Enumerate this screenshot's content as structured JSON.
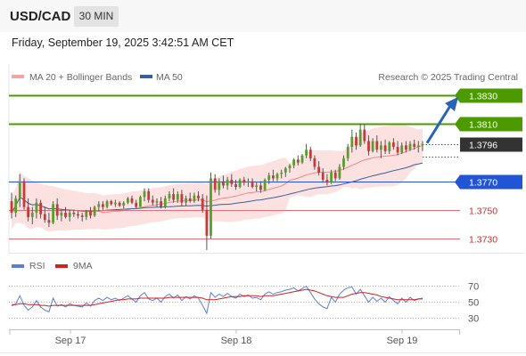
{
  "header": {
    "symbol": "USD/CAD",
    "timeframe": "30 MIN",
    "datetime": "Friday, September 19, 2025 3:42:51 AM CET"
  },
  "legend": {
    "ma20": "MA 20 + Bollinger Bands",
    "ma50": "MA 50",
    "copyright": "Research © 2025 Trading Central"
  },
  "rsi_legend": {
    "rsi": "RSI",
    "ma9": "9MA"
  },
  "colors": {
    "resistance": "#4c9a00",
    "support": "#2155d6",
    "support_red": "#e0707a",
    "current": "#333333",
    "up_candle": "#5a9e2a",
    "down_candle": "#c83a3a",
    "bollinger_fill": "#fbdcdc",
    "ma20": "#f08a8a",
    "ma50": "#3a5fa0",
    "rsi_line": "#5b7fd6",
    "rsi_ma": "#d42020",
    "arrow": "#2a62b8"
  },
  "chart_data": {
    "type": "candlestick",
    "symbol": "USD/CAD",
    "x_labels": [
      "Sep 17",
      "Sep 18",
      "Sep 19"
    ],
    "y_range": [
      1.372,
      1.384
    ],
    "levels": [
      {
        "value": 1.383,
        "label": "1.3830",
        "kind": "resistance"
      },
      {
        "value": 1.381,
        "label": "1.3810",
        "kind": "resistance"
      },
      {
        "value": 1.3796,
        "label": "1.3796",
        "kind": "current"
      },
      {
        "value": 1.377,
        "label": "1.3770",
        "kind": "pivot"
      },
      {
        "value": 1.375,
        "label": "1.3750",
        "kind": "support"
      },
      {
        "value": 1.373,
        "label": "1.3730",
        "kind": "support"
      }
    ],
    "forecast_arrow": {
      "from": 1.3796,
      "to": 1.383
    },
    "candles": [
      [
        1.3756,
        1.3762,
        1.3744,
        1.3748
      ],
      [
        1.3748,
        1.376,
        1.3745,
        1.3758
      ],
      [
        1.3758,
        1.3775,
        1.3752,
        1.377
      ],
      [
        1.377,
        1.3772,
        1.375,
        1.3752
      ],
      [
        1.3752,
        1.3758,
        1.3742,
        1.3745
      ],
      [
        1.3745,
        1.3752,
        1.374,
        1.3748
      ],
      [
        1.3748,
        1.3758,
        1.3744,
        1.3755
      ],
      [
        1.3755,
        1.3757,
        1.3744,
        1.3747
      ],
      [
        1.3747,
        1.3752,
        1.3741,
        1.3743
      ],
      [
        1.3743,
        1.3748,
        1.3738,
        1.3741
      ],
      [
        1.3741,
        1.3756,
        1.374,
        1.3754
      ],
      [
        1.3754,
        1.3758,
        1.3743,
        1.3746
      ],
      [
        1.3746,
        1.375,
        1.3742,
        1.3748
      ],
      [
        1.3748,
        1.3752,
        1.3744,
        1.3745
      ],
      [
        1.3745,
        1.375,
        1.3742,
        1.3748
      ],
      [
        1.3748,
        1.375,
        1.3745,
        1.3747
      ],
      [
        1.3747,
        1.3749,
        1.3744,
        1.3746
      ],
      [
        1.3746,
        1.3748,
        1.3742,
        1.3745
      ],
      [
        1.3745,
        1.375,
        1.3743,
        1.3749
      ],
      [
        1.3749,
        1.3752,
        1.3744,
        1.3746
      ],
      [
        1.3746,
        1.3753,
        1.3745,
        1.3752
      ],
      [
        1.3752,
        1.3756,
        1.3749,
        1.3754
      ],
      [
        1.3754,
        1.3756,
        1.375,
        1.3752
      ],
      [
        1.3752,
        1.3757,
        1.3751,
        1.3756
      ],
      [
        1.3756,
        1.3757,
        1.3753,
        1.3754
      ],
      [
        1.3754,
        1.3757,
        1.3752,
        1.3755
      ],
      [
        1.3755,
        1.3756,
        1.3752,
        1.3753
      ],
      [
        1.3753,
        1.3756,
        1.3751,
        1.3755
      ],
      [
        1.3755,
        1.3759,
        1.3754,
        1.3758
      ],
      [
        1.3758,
        1.376,
        1.3754,
        1.3755
      ],
      [
        1.3755,
        1.3757,
        1.3751,
        1.3752
      ],
      [
        1.3752,
        1.376,
        1.3752,
        1.3759
      ],
      [
        1.3759,
        1.3765,
        1.3756,
        1.3763
      ],
      [
        1.3763,
        1.3765,
        1.3755,
        1.3757
      ],
      [
        1.3757,
        1.376,
        1.3753,
        1.3755
      ],
      [
        1.3755,
        1.3758,
        1.3752,
        1.3756
      ],
      [
        1.3756,
        1.3759,
        1.3751,
        1.3752
      ],
      [
        1.3752,
        1.376,
        1.3751,
        1.3758
      ],
      [
        1.3758,
        1.3763,
        1.3756,
        1.3761
      ],
      [
        1.3761,
        1.3765,
        1.3755,
        1.3757
      ],
      [
        1.3757,
        1.3763,
        1.3755,
        1.3761
      ],
      [
        1.3761,
        1.3764,
        1.3753,
        1.3755
      ],
      [
        1.3755,
        1.376,
        1.3753,
        1.3758
      ],
      [
        1.3758,
        1.3762,
        1.3755,
        1.3756
      ],
      [
        1.3756,
        1.3762,
        1.3755,
        1.376
      ],
      [
        1.376,
        1.3763,
        1.3756,
        1.3758
      ],
      [
        1.3758,
        1.3761,
        1.3748,
        1.375
      ],
      [
        1.375,
        1.376,
        1.3722,
        1.3732
      ],
      [
        1.3732,
        1.3776,
        1.373,
        1.3772
      ],
      [
        1.3772,
        1.3775,
        1.3762,
        1.3764
      ],
      [
        1.3764,
        1.3772,
        1.376,
        1.377
      ],
      [
        1.377,
        1.3774,
        1.3765,
        1.3767
      ],
      [
        1.3767,
        1.3773,
        1.3764,
        1.3771
      ],
      [
        1.3771,
        1.3775,
        1.3766,
        1.3768
      ],
      [
        1.3768,
        1.3771,
        1.3764,
        1.3766
      ],
      [
        1.3766,
        1.3772,
        1.3765,
        1.3771
      ],
      [
        1.3771,
        1.3773,
        1.3767,
        1.3769
      ],
      [
        1.3769,
        1.3772,
        1.3766,
        1.377
      ],
      [
        1.377,
        1.3772,
        1.3765,
        1.3766
      ],
      [
        1.3766,
        1.3769,
        1.3763,
        1.3767
      ],
      [
        1.3767,
        1.377,
        1.3762,
        1.3764
      ],
      [
        1.3764,
        1.3772,
        1.3763,
        1.3771
      ],
      [
        1.3771,
        1.3776,
        1.3768,
        1.3774
      ],
      [
        1.3774,
        1.3778,
        1.377,
        1.3772
      ],
      [
        1.3772,
        1.3776,
        1.377,
        1.3775
      ],
      [
        1.3775,
        1.3778,
        1.3772,
        1.3776
      ],
      [
        1.3776,
        1.378,
        1.3773,
        1.3779
      ],
      [
        1.3779,
        1.3782,
        1.3776,
        1.3781
      ],
      [
        1.3781,
        1.3786,
        1.3779,
        1.3785
      ],
      [
        1.3785,
        1.3788,
        1.3781,
        1.3783
      ],
      [
        1.3783,
        1.3789,
        1.3782,
        1.3788
      ],
      [
        1.3788,
        1.3796,
        1.3786,
        1.3792
      ],
      [
        1.3792,
        1.3794,
        1.3784,
        1.3786
      ],
      [
        1.3786,
        1.3788,
        1.3778,
        1.378
      ],
      [
        1.378,
        1.3784,
        1.3774,
        1.3776
      ],
      [
        1.3776,
        1.3779,
        1.3769,
        1.3771
      ],
      [
        1.3771,
        1.3775,
        1.3767,
        1.3769
      ],
      [
        1.3769,
        1.3778,
        1.3768,
        1.3776
      ],
      [
        1.3776,
        1.3778,
        1.377,
        1.3772
      ],
      [
        1.3772,
        1.3782,
        1.3771,
        1.378
      ],
      [
        1.378,
        1.3788,
        1.3778,
        1.3786
      ],
      [
        1.3786,
        1.3796,
        1.3784,
        1.3794
      ],
      [
        1.3794,
        1.3806,
        1.379,
        1.3801
      ],
      [
        1.3801,
        1.3804,
        1.3792,
        1.3795
      ],
      [
        1.3795,
        1.381,
        1.3794,
        1.3806
      ],
      [
        1.3806,
        1.381,
        1.3796,
        1.3798
      ],
      [
        1.3798,
        1.3802,
        1.3788,
        1.3791
      ],
      [
        1.3791,
        1.38,
        1.379,
        1.3798
      ],
      [
        1.3798,
        1.3802,
        1.379,
        1.3792
      ],
      [
        1.3792,
        1.3798,
        1.3786,
        1.3795
      ],
      [
        1.3795,
        1.3799,
        1.3789,
        1.3791
      ],
      [
        1.3791,
        1.3798,
        1.3789,
        1.3797
      ],
      [
        1.3797,
        1.38,
        1.3792,
        1.3794
      ],
      [
        1.3794,
        1.3798,
        1.3788,
        1.379
      ],
      [
        1.379,
        1.3797,
        1.3789,
        1.3795
      ],
      [
        1.3795,
        1.3798,
        1.379,
        1.3792
      ],
      [
        1.3792,
        1.3798,
        1.3791,
        1.3796
      ],
      [
        1.3796,
        1.3799,
        1.3792,
        1.3794
      ],
      [
        1.3794,
        1.3798,
        1.379,
        1.3795
      ],
      [
        1.3795,
        1.3798,
        1.3791,
        1.3796
      ]
    ],
    "rsi_axis": {
      "ticks": [
        70,
        50,
        30
      ],
      "range": [
        20,
        80
      ]
    },
    "rsi_values": [
      45,
      48,
      58,
      46,
      40,
      44,
      52,
      44,
      40,
      38,
      55,
      45,
      47,
      44,
      48,
      46,
      45,
      44,
      49,
      45,
      52,
      55,
      52,
      56,
      53,
      55,
      52,
      55,
      58,
      54,
      50,
      58,
      62,
      54,
      52,
      55,
      50,
      57,
      60,
      55,
      59,
      52,
      57,
      54,
      58,
      55,
      46,
      36,
      62,
      56,
      60,
      57,
      61,
      57,
      55,
      60,
      57,
      59,
      55,
      56,
      53,
      60,
      63,
      60,
      62,
      63,
      65,
      66,
      68,
      64,
      67,
      70,
      62,
      54,
      48,
      44,
      42,
      56,
      50,
      60,
      65,
      68,
      69,
      60,
      66,
      58,
      50,
      56,
      51,
      55,
      50,
      57,
      52,
      48,
      55,
      50,
      56,
      52,
      54,
      55
    ],
    "rsi_ma_values": [
      47,
      47,
      48,
      48,
      47,
      47,
      47,
      46,
      46,
      45,
      46,
      46,
      46,
      46,
      46,
      46,
      46,
      46,
      46,
      46,
      47,
      48,
      49,
      50,
      51,
      52,
      53,
      53,
      54,
      54,
      54,
      55,
      55,
      55,
      55,
      55,
      55,
      55,
      56,
      56,
      56,
      56,
      56,
      56,
      56,
      56,
      55,
      53,
      53,
      53,
      54,
      55,
      56,
      57,
      57,
      57,
      58,
      58,
      58,
      58,
      57,
      58,
      58,
      58,
      59,
      60,
      61,
      62,
      63,
      64,
      65,
      66,
      65,
      64,
      62,
      60,
      58,
      57,
      56,
      56,
      56,
      58,
      60,
      61,
      62,
      62,
      61,
      60,
      59,
      57,
      56,
      55,
      54,
      53,
      53,
      53,
      53,
      53,
      54,
      54
    ]
  }
}
